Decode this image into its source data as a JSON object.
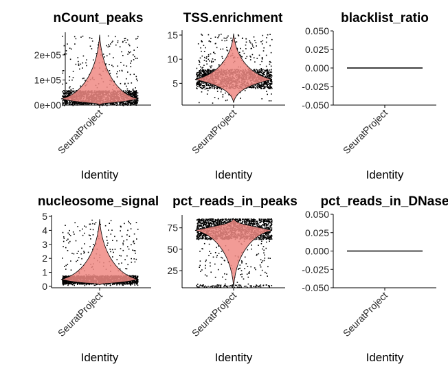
{
  "colors": {
    "violin_fill": "#f08a84",
    "violin_stroke": "#000000",
    "points": "#000000",
    "axis": "#000000"
  },
  "chart_data": [
    {
      "type": "violin",
      "title": "nCount_peaks",
      "xlabel": "Identity",
      "categories": [
        "SeuratProject"
      ],
      "ylim": [
        0,
        290000
      ],
      "yticks": [
        0,
        100000,
        200000
      ],
      "yticklabels": [
        "0e+00",
        "1e+05",
        "2e+05"
      ],
      "summary": {
        "min": 0,
        "median": 25000,
        "upper_points_max": 280000,
        "dense_band": [
          5000,
          60000
        ]
      }
    },
    {
      "type": "violin",
      "title": "TSS.enrichment",
      "xlabel": "Identity",
      "categories": [
        "SeuratProject"
      ],
      "ylim": [
        0.5,
        16
      ],
      "yticks": [
        5,
        10,
        15
      ],
      "yticklabels": [
        "5",
        "10",
        "15"
      ],
      "summary": {
        "min": 1,
        "median": 5.8,
        "max": 15.3,
        "dense_band": [
          4,
          8
        ]
      }
    },
    {
      "type": "violin",
      "title": "blacklist_ratio",
      "xlabel": "Identity",
      "categories": [
        "SeuratProject"
      ],
      "ylim": [
        -0.05,
        0.05
      ],
      "yticks": [
        -0.05,
        -0.025,
        0,
        0.025,
        0.05
      ],
      "yticklabels": [
        "-0.050",
        "-0.025",
        "0.000",
        "0.025",
        "0.050"
      ],
      "summary": {
        "constant_value": 0
      }
    },
    {
      "type": "violin",
      "title": "nucleosome_signal",
      "xlabel": "Identity",
      "categories": [
        "SeuratProject"
      ],
      "ylim": [
        -0.1,
        5.1
      ],
      "yticks": [
        0,
        1,
        2,
        3,
        4,
        5
      ],
      "yticklabels": [
        "0",
        "1",
        "2",
        "3",
        "4",
        "5"
      ],
      "summary": {
        "min": 0.1,
        "median": 0.5,
        "max": 4.8,
        "dense_band": [
          0.2,
          0.8
        ]
      }
    },
    {
      "type": "violin",
      "title": "pct_reads_in_peaks",
      "xlabel": "Identity",
      "categories": [
        "SeuratProject"
      ],
      "ylim": [
        5,
        90
      ],
      "yticks": [
        25,
        50,
        75
      ],
      "yticklabels": [
        "25",
        "50",
        "75"
      ],
      "summary": {
        "min": 6,
        "median": 72,
        "max": 86,
        "dense_band": [
          62,
          84
        ]
      }
    },
    {
      "type": "violin",
      "title": "pct_reads_in_DNase",
      "xlabel": "Identity",
      "categories": [
        "SeuratProject"
      ],
      "ylim": [
        -0.05,
        0.05
      ],
      "yticks": [
        -0.05,
        -0.025,
        0,
        0.025,
        0.05
      ],
      "yticklabels": [
        "-0.050",
        "-0.025",
        "0.000",
        "0.025",
        "0.050"
      ],
      "summary": {
        "constant_value": 0
      }
    }
  ]
}
